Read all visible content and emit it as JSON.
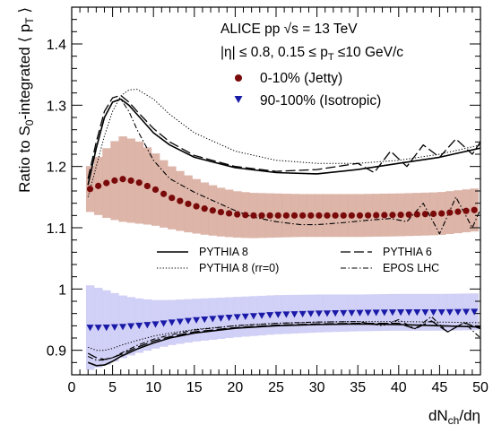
{
  "chart_data": {
    "type": "line",
    "xlabel": {
      "main": "dN",
      "sub": "ch",
      "tail": "/dη"
    },
    "ylabel": {
      "pre": "Ratio to S",
      "sub0": "0",
      "mid": "-integrated ⟨ p",
      "subT": "T",
      "post": " ⟩"
    },
    "xlim": [
      0,
      50
    ],
    "ylim": [
      0.86,
      1.46
    ],
    "xticks": [
      0,
      5,
      10,
      15,
      20,
      25,
      30,
      35,
      40,
      45,
      50
    ],
    "yticks": [
      0.9,
      1.0,
      1.1,
      1.2,
      1.3,
      1.4
    ],
    "ytick_labels": [
      "0.9",
      "1",
      "1.1",
      "1.2",
      "1.3",
      "1.4"
    ],
    "annotations": {
      "line1": "ALICE pp √s = 13 TeV",
      "line2": "|η| ≤ 0.8, 0.15 ≤ p",
      "line2_sub": "T",
      "line2_tail": " ≤10 GeV/c"
    },
    "legend_top": [
      {
        "name": "0-10% (Jetty)",
        "marker": "circle",
        "color": "#7a0a0a"
      },
      {
        "name": "90-100% (Isotropic)",
        "marker": "triangle-down",
        "color": "#1a1aa8"
      }
    ],
    "legend_models": [
      {
        "name": "PYTHIA 8",
        "dash": "solid"
      },
      {
        "name": "PYTHIA 6",
        "dash": "longdash"
      },
      {
        "name": "PYTHIA 8 (rr=0)",
        "dash": "dotted"
      },
      {
        "name": "EPOS LHC",
        "dash": "dashdot"
      }
    ],
    "series": [
      {
        "name": "0-10% (Jetty)",
        "kind": "data",
        "color": "#7a0a0a",
        "band_color": "#d7a89a",
        "x": [
          2,
          4,
          6,
          8,
          10,
          12,
          14,
          16,
          18,
          20,
          22,
          25,
          28,
          30,
          35,
          40,
          45,
          50
        ],
        "y": [
          1.162,
          1.172,
          1.18,
          1.175,
          1.164,
          1.15,
          1.14,
          1.132,
          1.126,
          1.122,
          1.12,
          1.12,
          1.12,
          1.12,
          1.12,
          1.121,
          1.123,
          1.13
        ],
        "band": [
          0.035,
          0.055,
          0.07,
          0.068,
          0.06,
          0.052,
          0.047,
          0.043,
          0.04,
          0.038,
          0.037,
          0.036,
          0.035,
          0.035,
          0.035,
          0.035,
          0.035,
          0.035
        ]
      },
      {
        "name": "90-100% (Isotropic)",
        "kind": "data",
        "color": "#1a1aa8",
        "band_color": "#c9c8f5",
        "x": [
          2,
          4,
          6,
          8,
          10,
          12,
          15,
          20,
          25,
          30,
          35,
          40,
          45,
          50
        ],
        "y": [
          0.937,
          0.937,
          0.938,
          0.94,
          0.942,
          0.945,
          0.949,
          0.954,
          0.958,
          0.96,
          0.961,
          0.962,
          0.962,
          0.963
        ],
        "band": [
          0.07,
          0.062,
          0.052,
          0.045,
          0.04,
          0.037,
          0.035,
          0.033,
          0.032,
          0.031,
          0.03,
          0.03,
          0.03,
          0.03
        ]
      },
      {
        "name": "PYTHIA 8",
        "kind": "model",
        "group": "jetty",
        "dash": "solid",
        "x": [
          2,
          3,
          4,
          5,
          6,
          7,
          8,
          10,
          12,
          15,
          20,
          25,
          30,
          35,
          40,
          45,
          50
        ],
        "y": [
          1.17,
          1.23,
          1.28,
          1.305,
          1.31,
          1.3,
          1.285,
          1.255,
          1.235,
          1.215,
          1.198,
          1.19,
          1.188,
          1.195,
          1.205,
          1.215,
          1.23
        ]
      },
      {
        "name": "PYTHIA 6",
        "kind": "model",
        "group": "jetty",
        "dash": "longdash",
        "x": [
          2,
          3,
          4,
          5,
          6,
          7,
          8,
          10,
          12,
          15,
          20,
          25,
          30,
          35,
          37,
          39,
          41,
          43,
          45,
          47,
          49,
          50
        ],
        "y": [
          1.18,
          1.24,
          1.29,
          1.312,
          1.316,
          1.305,
          1.29,
          1.262,
          1.24,
          1.218,
          1.2,
          1.192,
          1.195,
          1.205,
          1.19,
          1.225,
          1.2,
          1.235,
          1.215,
          1.245,
          1.22,
          1.24
        ]
      },
      {
        "name": "PYTHIA 8 (rr=0)",
        "kind": "model",
        "group": "jetty",
        "dash": "dotted",
        "x": [
          2,
          3,
          4,
          5,
          6,
          7,
          8,
          10,
          12,
          15,
          20,
          25,
          30,
          35,
          40,
          45,
          50
        ],
        "y": [
          1.15,
          1.2,
          1.25,
          1.29,
          1.315,
          1.325,
          1.326,
          1.31,
          1.285,
          1.255,
          1.225,
          1.21,
          1.205,
          1.205,
          1.21,
          1.22,
          1.235
        ]
      },
      {
        "name": "EPOS LHC",
        "kind": "model",
        "group": "jetty",
        "dash": "dashdot",
        "x": [
          2,
          3,
          4,
          5,
          6,
          7,
          8,
          10,
          12,
          15,
          18,
          20,
          22,
          25,
          28,
          30,
          33,
          36,
          39,
          41,
          43,
          45,
          47,
          49,
          50
        ],
        "y": [
          1.17,
          1.23,
          1.28,
          1.305,
          1.31,
          1.29,
          1.26,
          1.21,
          1.18,
          1.158,
          1.14,
          1.128,
          1.118,
          1.11,
          1.105,
          1.105,
          1.108,
          1.112,
          1.115,
          1.11,
          1.14,
          1.09,
          1.15,
          1.1,
          1.13
        ]
      },
      {
        "name": "PYTHIA 8",
        "kind": "model",
        "group": "iso",
        "dash": "solid",
        "x": [
          2,
          3,
          4,
          5,
          6,
          8,
          10,
          12,
          15,
          20,
          25,
          30,
          35,
          40,
          45,
          50
        ],
        "y": [
          0.88,
          0.875,
          0.876,
          0.882,
          0.89,
          0.902,
          0.912,
          0.92,
          0.928,
          0.936,
          0.94,
          0.942,
          0.943,
          0.942,
          0.94,
          0.938
        ]
      },
      {
        "name": "PYTHIA 6",
        "kind": "model",
        "group": "iso",
        "dash": "longdash",
        "x": [
          2,
          3,
          4,
          5,
          6,
          8,
          10,
          12,
          15,
          20,
          25,
          30,
          35,
          40,
          42,
          44,
          46,
          48,
          50
        ],
        "y": [
          0.895,
          0.888,
          0.885,
          0.888,
          0.893,
          0.905,
          0.915,
          0.922,
          0.93,
          0.937,
          0.941,
          0.943,
          0.944,
          0.944,
          0.935,
          0.948,
          0.93,
          0.945,
          0.935
        ]
      },
      {
        "name": "PYTHIA 8 (rr=0)",
        "kind": "model",
        "group": "iso",
        "dash": "dotted",
        "x": [
          2,
          3,
          4,
          5,
          6,
          8,
          10,
          12,
          15,
          20,
          25,
          30,
          35,
          40,
          45,
          50
        ],
        "y": [
          0.905,
          0.9,
          0.9,
          0.903,
          0.908,
          0.916,
          0.923,
          0.928,
          0.934,
          0.94,
          0.944,
          0.946,
          0.947,
          0.947,
          0.946,
          0.945
        ]
      },
      {
        "name": "EPOS LHC",
        "kind": "model",
        "group": "iso",
        "dash": "dashdot",
        "x": [
          2,
          3,
          4,
          5,
          6,
          8,
          10,
          12,
          15,
          20,
          25,
          30,
          35,
          38,
          40,
          42,
          44,
          46,
          48,
          50
        ],
        "y": [
          0.89,
          0.884,
          0.884,
          0.888,
          0.895,
          0.908,
          0.918,
          0.925,
          0.933,
          0.94,
          0.944,
          0.946,
          0.947,
          0.94,
          0.95,
          0.935,
          0.955,
          0.93,
          0.945,
          0.92
        ]
      }
    ]
  }
}
